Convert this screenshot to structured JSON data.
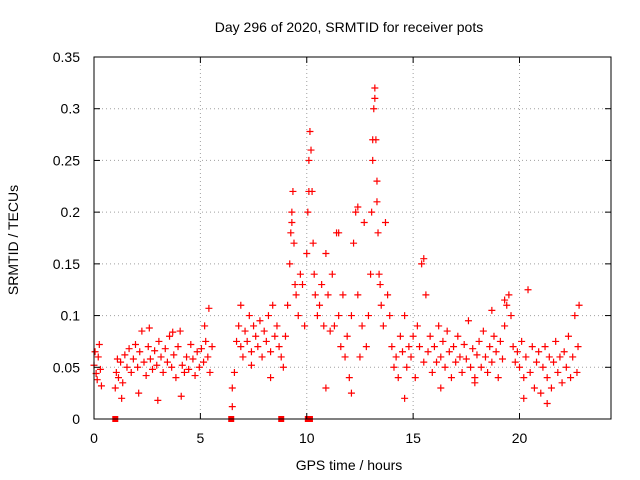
{
  "chart_data": {
    "type": "scatter",
    "title": "Day 296 of 2020, SRMTID for receiver pots",
    "xlabel": "GPS time / hours",
    "ylabel": "SRMTID / TECUs",
    "xlim": [
      0,
      24.3
    ],
    "ylim": [
      0,
      0.35
    ],
    "xticks": [
      0,
      5,
      10,
      15,
      20
    ],
    "yticks": [
      0,
      0.05,
      0.1,
      0.15,
      0.2,
      0.25,
      0.3,
      0.35
    ],
    "xtick_labels": [
      "0",
      "5",
      "10",
      "15",
      "20"
    ],
    "ytick_labels": [
      "0",
      "0.05",
      "0.1",
      "0.15",
      "0.2",
      "0.25",
      "0.3",
      "0.35"
    ],
    "grid": true,
    "marker": "+",
    "series_color": "#ff0000",
    "series": [
      {
        "name": "SRMTID",
        "points": [
          [
            0.0,
            0.052
          ],
          [
            0.05,
            0.065
          ],
          [
            0.1,
            0.044
          ],
          [
            0.15,
            0.038
          ],
          [
            0.2,
            0.06
          ],
          [
            0.25,
            0.072
          ],
          [
            0.3,
            0.048
          ],
          [
            0.35,
            0.032
          ],
          [
            1.0,
            0.03
          ],
          [
            1.05,
            0.045
          ],
          [
            1.1,
            0.058
          ],
          [
            1.15,
            0.04
          ],
          [
            1.25,
            0.055
          ],
          [
            1.35,
            0.035
          ],
          [
            1.45,
            0.062
          ],
          [
            1.55,
            0.05
          ],
          [
            1.65,
            0.068
          ],
          [
            1.75,
            0.045
          ],
          [
            1.85,
            0.058
          ],
          [
            1.95,
            0.072
          ],
          [
            2.05,
            0.05
          ],
          [
            2.15,
            0.065
          ],
          [
            2.25,
            0.085
          ],
          [
            2.35,
            0.055
          ],
          [
            2.45,
            0.042
          ],
          [
            2.55,
            0.07
          ],
          [
            2.65,
            0.058
          ],
          [
            2.75,
            0.048
          ],
          [
            2.85,
            0.066
          ],
          [
            2.95,
            0.052
          ],
          [
            3.05,
            0.075
          ],
          [
            3.15,
            0.06
          ],
          [
            3.25,
            0.045
          ],
          [
            3.35,
            0.068
          ],
          [
            3.45,
            0.055
          ],
          [
            3.55,
            0.08
          ],
          [
            3.65,
            0.05
          ],
          [
            3.75,
            0.062
          ],
          [
            3.85,
            0.04
          ],
          [
            3.95,
            0.07
          ],
          [
            4.05,
            0.085
          ],
          [
            4.15,
            0.052
          ],
          [
            4.25,
            0.045
          ],
          [
            4.35,
            0.06
          ],
          [
            4.45,
            0.048
          ],
          [
            4.55,
            0.072
          ],
          [
            4.65,
            0.058
          ],
          [
            4.75,
            0.042
          ],
          [
            4.85,
            0.065
          ],
          [
            4.95,
            0.05
          ],
          [
            5.05,
            0.068
          ],
          [
            5.15,
            0.055
          ],
          [
            5.25,
            0.075
          ],
          [
            5.35,
            0.06
          ],
          [
            5.45,
            0.045
          ],
          [
            5.55,
            0.07
          ],
          [
            5.4,
            0.107
          ],
          [
            5.2,
            0.09
          ],
          [
            1.3,
            0.02
          ],
          [
            2.1,
            0.025
          ],
          [
            3.0,
            0.018
          ],
          [
            4.1,
            0.022
          ],
          [
            2.6,
            0.088
          ],
          [
            3.7,
            0.084
          ],
          [
            6.5,
            0.012
          ],
          [
            6.5,
            0.03
          ],
          [
            6.6,
            0.045
          ],
          [
            6.7,
            0.075
          ],
          [
            6.8,
            0.09
          ],
          [
            6.9,
            0.07
          ],
          [
            7.0,
            0.06
          ],
          [
            7.1,
            0.085
          ],
          [
            7.2,
            0.075
          ],
          [
            7.3,
            0.1
          ],
          [
            7.4,
            0.065
          ],
          [
            7.5,
            0.09
          ],
          [
            7.6,
            0.08
          ],
          [
            7.7,
            0.07
          ],
          [
            7.8,
            0.095
          ],
          [
            7.9,
            0.06
          ],
          [
            8.0,
            0.085
          ],
          [
            8.1,
            0.075
          ],
          [
            8.2,
            0.1
          ],
          [
            8.3,
            0.065
          ],
          [
            8.4,
            0.11
          ],
          [
            8.5,
            0.08
          ],
          [
            8.6,
            0.09
          ],
          [
            8.7,
            0.07
          ],
          [
            8.8,
            0.06
          ],
          [
            8.9,
            0.05
          ],
          [
            9.0,
            0.08
          ],
          [
            9.1,
            0.11
          ],
          [
            9.2,
            0.15
          ],
          [
            9.25,
            0.18
          ],
          [
            9.3,
            0.2
          ],
          [
            9.35,
            0.22
          ],
          [
            9.4,
            0.17
          ],
          [
            9.45,
            0.13
          ],
          [
            9.5,
            0.12
          ],
          [
            9.6,
            0.1
          ],
          [
            9.7,
            0.14
          ],
          [
            9.8,
            0.13
          ],
          [
            9.9,
            0.09
          ],
          [
            10.0,
            0.16
          ],
          [
            10.05,
            0.2
          ],
          [
            10.1,
            0.25
          ],
          [
            10.15,
            0.278
          ],
          [
            10.2,
            0.26
          ],
          [
            10.25,
            0.22
          ],
          [
            10.3,
            0.17
          ],
          [
            10.35,
            0.14
          ],
          [
            10.4,
            0.12
          ],
          [
            10.5,
            0.1
          ],
          [
            10.6,
            0.11
          ],
          [
            10.7,
            0.13
          ],
          [
            10.8,
            0.09
          ],
          [
            10.9,
            0.16
          ],
          [
            11.0,
            0.12
          ],
          [
            11.1,
            0.085
          ],
          [
            11.2,
            0.14
          ],
          [
            11.3,
            0.09
          ],
          [
            11.4,
            0.18
          ],
          [
            11.5,
            0.1
          ],
          [
            11.6,
            0.07
          ],
          [
            11.7,
            0.12
          ],
          [
            11.8,
            0.06
          ],
          [
            11.9,
            0.08
          ],
          [
            12.0,
            0.04
          ],
          [
            12.1,
            0.1
          ],
          [
            12.2,
            0.17
          ],
          [
            12.3,
            0.2
          ],
          [
            12.4,
            0.12
          ],
          [
            12.5,
            0.06
          ],
          [
            12.6,
            0.09
          ],
          [
            12.7,
            0.19
          ],
          [
            12.8,
            0.07
          ],
          [
            12.9,
            0.1
          ],
          [
            13.0,
            0.14
          ],
          [
            13.05,
            0.2
          ],
          [
            13.1,
            0.25
          ],
          [
            13.15,
            0.3
          ],
          [
            13.2,
            0.32
          ],
          [
            13.25,
            0.27
          ],
          [
            13.3,
            0.23
          ],
          [
            13.35,
            0.18
          ],
          [
            13.4,
            0.14
          ],
          [
            13.45,
            0.13
          ],
          [
            13.5,
            0.11
          ],
          [
            13.6,
            0.09
          ],
          [
            13.7,
            0.19
          ],
          [
            13.8,
            0.12
          ],
          [
            13.9,
            0.1
          ],
          [
            14.0,
            0.07
          ],
          [
            14.1,
            0.05
          ],
          [
            14.2,
            0.06
          ],
          [
            14.3,
            0.04
          ],
          [
            14.4,
            0.08
          ],
          [
            14.5,
            0.065
          ],
          [
            14.6,
            0.1
          ],
          [
            14.7,
            0.05
          ],
          [
            14.8,
            0.07
          ],
          [
            14.9,
            0.06
          ],
          [
            15.0,
            0.08
          ],
          [
            15.1,
            0.04
          ],
          [
            15.2,
            0.09
          ],
          [
            15.3,
            0.07
          ],
          [
            15.4,
            0.15
          ],
          [
            15.5,
            0.055
          ],
          [
            15.6,
            0.12
          ],
          [
            15.7,
            0.065
          ],
          [
            15.8,
            0.08
          ],
          [
            15.9,
            0.045
          ],
          [
            16.0,
            0.07
          ],
          [
            16.1,
            0.055
          ],
          [
            16.2,
            0.09
          ],
          [
            16.3,
            0.06
          ],
          [
            16.4,
            0.075
          ],
          [
            16.5,
            0.05
          ],
          [
            16.6,
            0.085
          ],
          [
            16.7,
            0.065
          ],
          [
            16.8,
            0.04
          ],
          [
            16.9,
            0.07
          ],
          [
            17.0,
            0.055
          ],
          [
            17.1,
            0.08
          ],
          [
            17.2,
            0.06
          ],
          [
            17.3,
            0.045
          ],
          [
            17.4,
            0.072
          ],
          [
            17.5,
            0.058
          ],
          [
            17.6,
            0.095
          ],
          [
            17.7,
            0.05
          ],
          [
            17.8,
            0.068
          ],
          [
            17.9,
            0.04
          ],
          [
            18.0,
            0.062
          ],
          [
            18.1,
            0.075
          ],
          [
            18.2,
            0.05
          ],
          [
            18.3,
            0.085
          ],
          [
            18.4,
            0.06
          ],
          [
            18.5,
            0.045
          ],
          [
            18.6,
            0.07
          ],
          [
            18.7,
            0.055
          ],
          [
            18.8,
            0.08
          ],
          [
            18.9,
            0.065
          ],
          [
            19.0,
            0.04
          ],
          [
            19.1,
            0.075
          ],
          [
            19.2,
            0.058
          ],
          [
            19.3,
            0.09
          ],
          [
            19.4,
            0.11
          ],
          [
            19.5,
            0.12
          ],
          [
            19.6,
            0.1
          ],
          [
            19.7,
            0.07
          ],
          [
            19.8,
            0.055
          ],
          [
            19.9,
            0.065
          ],
          [
            20.0,
            0.05
          ],
          [
            20.1,
            0.075
          ],
          [
            20.2,
            0.04
          ],
          [
            20.3,
            0.06
          ],
          [
            20.4,
            0.125
          ],
          [
            20.5,
            0.045
          ],
          [
            20.6,
            0.07
          ],
          [
            20.7,
            0.03
          ],
          [
            20.8,
            0.055
          ],
          [
            20.9,
            0.065
          ],
          [
            21.0,
            0.025
          ],
          [
            21.1,
            0.05
          ],
          [
            21.2,
            0.07
          ],
          [
            21.3,
            0.04
          ],
          [
            21.4,
            0.06
          ],
          [
            21.5,
            0.03
          ],
          [
            21.6,
            0.055
          ],
          [
            21.7,
            0.075
          ],
          [
            21.8,
            0.045
          ],
          [
            21.9,
            0.06
          ],
          [
            22.0,
            0.035
          ],
          [
            22.1,
            0.065
          ],
          [
            22.2,
            0.05
          ],
          [
            22.3,
            0.08
          ],
          [
            22.4,
            0.04
          ],
          [
            22.5,
            0.06
          ],
          [
            22.6,
            0.1
          ],
          [
            22.7,
            0.045
          ],
          [
            22.8,
            0.11
          ],
          [
            22.75,
            0.07
          ],
          [
            21.3,
            0.015
          ],
          [
            20.2,
            0.02
          ],
          [
            17.9,
            0.035
          ],
          [
            16.3,
            0.03
          ],
          [
            14.6,
            0.02
          ],
          [
            12.1,
            0.025
          ],
          [
            10.9,
            0.03
          ],
          [
            8.3,
            0.04
          ],
          [
            7.4,
            0.052
          ],
          [
            6.9,
            0.11
          ],
          [
            9.3,
            0.19
          ],
          [
            10.1,
            0.22
          ],
          [
            13.2,
            0.31
          ],
          [
            13.1,
            0.27
          ],
          [
            13.3,
            0.21
          ],
          [
            12.4,
            0.205
          ],
          [
            11.5,
            0.18
          ],
          [
            15.5,
            0.155
          ],
          [
            18.7,
            0.105
          ],
          [
            19.3,
            0.115
          ]
        ]
      }
    ],
    "zero_markers": [
      1.0,
      6.45,
      8.8,
      10.05,
      10.15
    ]
  }
}
